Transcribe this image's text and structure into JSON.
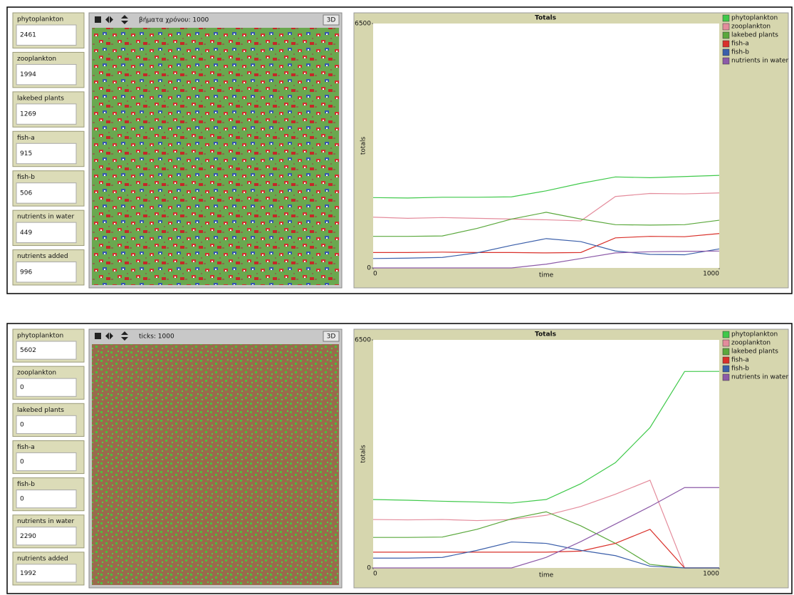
{
  "panels": [
    {
      "monitors": [
        {
          "label": "phytoplankton",
          "value": 2461
        },
        {
          "label": "zooplankton",
          "value": 1994
        },
        {
          "label": "lakebed plants",
          "value": 1269
        },
        {
          "label": "fish-a",
          "value": 915
        },
        {
          "label": "fish-b",
          "value": 506
        },
        {
          "label": "nutrients in water",
          "value": 449
        },
        {
          "label": "nutrients added",
          "value": 996
        }
      ],
      "view": {
        "ticks_label": "βήματα χρόνου: 1000",
        "button": "3D"
      }
    },
    {
      "monitors": [
        {
          "label": "phytoplankton",
          "value": 5602
        },
        {
          "label": "zooplankton",
          "value": 0
        },
        {
          "label": "lakebed plants",
          "value": 0
        },
        {
          "label": "fish-a",
          "value": 0
        },
        {
          "label": "fish-b",
          "value": 0
        },
        {
          "label": "nutrients in water",
          "value": 2290
        },
        {
          "label": "nutrients added",
          "value": 1992
        }
      ],
      "view": {
        "ticks_label": "ticks: 1000",
        "button": "3D"
      }
    }
  ],
  "chart_data": [
    {
      "type": "line",
      "title": "Totals",
      "x_label": "time",
      "y_label": "totals",
      "x": [
        0,
        100,
        200,
        300,
        400,
        500,
        600,
        700,
        800,
        900,
        1000
      ],
      "xlim": [
        0,
        1000
      ],
      "ylim": [
        0,
        6500
      ],
      "xticks": [
        0,
        1000
      ],
      "yticks": [
        0,
        6500
      ],
      "series": [
        {
          "name": "phytoplankton",
          "color": "#3fc94a",
          "values": [
            1870,
            1860,
            1880,
            1880,
            1890,
            2050,
            2250,
            2420,
            2400,
            2430,
            2461
          ]
        },
        {
          "name": "zooplankton",
          "color": "#e48c9c",
          "values": [
            1350,
            1320,
            1340,
            1320,
            1300,
            1280,
            1250,
            1900,
            1980,
            1970,
            1994
          ]
        },
        {
          "name": "lakebed plants",
          "color": "#5aa83c",
          "values": [
            840,
            840,
            850,
            1050,
            1300,
            1480,
            1300,
            1150,
            1140,
            1150,
            1269
          ]
        },
        {
          "name": "fish-a",
          "color": "#d9302a",
          "values": [
            410,
            410,
            420,
            410,
            410,
            400,
            410,
            800,
            840,
            830,
            915
          ]
        },
        {
          "name": "fish-b",
          "color": "#3b5faa",
          "values": [
            250,
            260,
            280,
            400,
            600,
            780,
            700,
            450,
            360,
            350,
            506
          ]
        },
        {
          "name": "nutrients in water",
          "color": "#8c5aa8",
          "values": [
            0,
            0,
            0,
            0,
            0,
            100,
            250,
            400,
            430,
            440,
            449
          ]
        }
      ]
    },
    {
      "type": "line",
      "title": "Totals",
      "x_label": "time",
      "y_label": "totals",
      "x": [
        0,
        100,
        200,
        300,
        400,
        500,
        600,
        700,
        800,
        900,
        1000
      ],
      "xlim": [
        0,
        1000
      ],
      "ylim": [
        0,
        6500
      ],
      "xticks": [
        0,
        1000
      ],
      "yticks": [
        0,
        6500
      ],
      "series": [
        {
          "name": "phytoplankton",
          "color": "#3fc94a",
          "values": [
            1950,
            1930,
            1900,
            1880,
            1850,
            1950,
            2400,
            3000,
            4000,
            5600,
            5602
          ]
        },
        {
          "name": "zooplankton",
          "color": "#e48c9c",
          "values": [
            1380,
            1370,
            1380,
            1350,
            1380,
            1500,
            1750,
            2100,
            2500,
            0,
            0
          ]
        },
        {
          "name": "lakebed plants",
          "color": "#5aa83c",
          "values": [
            870,
            870,
            880,
            1100,
            1400,
            1600,
            1200,
            700,
            100,
            0,
            0
          ]
        },
        {
          "name": "fish-a",
          "color": "#d9302a",
          "values": [
            450,
            450,
            450,
            450,
            450,
            450,
            480,
            700,
            1100,
            0,
            0
          ]
        },
        {
          "name": "fish-b",
          "color": "#3b5faa",
          "values": [
            280,
            280,
            300,
            500,
            740,
            700,
            500,
            350,
            50,
            0,
            0
          ]
        },
        {
          "name": "nutrients in water",
          "color": "#8c5aa8",
          "values": [
            0,
            0,
            0,
            0,
            0,
            300,
            750,
            1250,
            1750,
            2290,
            2290
          ]
        }
      ]
    }
  ]
}
